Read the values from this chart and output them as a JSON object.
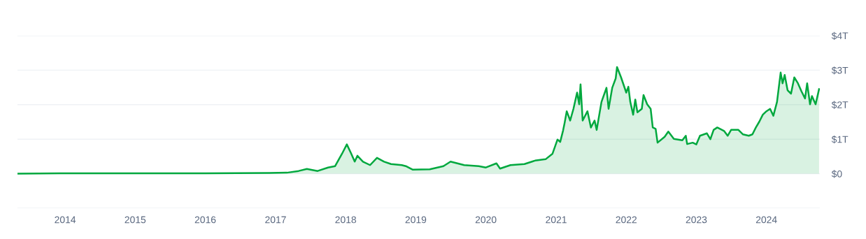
{
  "chart_data": {
    "type": "area",
    "x": [
      "2013-04-28",
      "2013-12-01",
      "2014-06-01",
      "2015-01-15",
      "2016-01-01",
      "2016-12-01",
      "2017-03-01",
      "2017-05-01",
      "2017-06-13",
      "2017-08-08",
      "2017-10-01",
      "2017-11-07",
      "2017-12-13",
      "2018-01-07",
      "2018-01-30",
      "2018-02-17",
      "2018-03-03",
      "2018-04-01",
      "2018-05-08",
      "2018-06-13",
      "2018-07-20",
      "2018-08-25",
      "2018-10-20",
      "2018-11-10",
      "2018-12-15",
      "2019-03-15",
      "2019-05-25",
      "2019-07-01",
      "2019-09-10",
      "2019-11-25",
      "2020-01-01",
      "2020-02-25",
      "2020-03-15",
      "2020-05-08",
      "2020-07-20",
      "2020-09-13",
      "2020-11-07",
      "2020-12-13",
      "2021-01-08",
      "2021-01-22",
      "2021-02-06",
      "2021-02-14",
      "2021-02-25",
      "2021-03-15",
      "2021-04-01",
      "2021-04-20",
      "2021-05-01",
      "2021-05-08",
      "2021-05-19",
      "2021-06-13",
      "2021-07-01",
      "2021-07-20",
      "2021-07-31",
      "2021-08-25",
      "2021-09-20",
      "2021-10-01",
      "2021-10-20",
      "2021-11-07",
      "2021-11-14",
      "2021-12-05",
      "2022-01-01",
      "2022-01-12",
      "2022-01-22",
      "2022-02-06",
      "2022-02-17",
      "2022-02-28",
      "2022-03-23",
      "2022-04-01",
      "2022-04-20",
      "2022-05-08",
      "2022-05-19",
      "2022-06-03",
      "2022-06-13",
      "2022-07-20",
      "2022-08-08",
      "2022-09-06",
      "2022-10-20",
      "2022-11-07",
      "2022-11-14",
      "2022-12-13",
      "2023-01-01",
      "2023-01-20",
      "2023-02-25",
      "2023-03-15",
      "2023-04-01",
      "2023-04-20",
      "2023-05-25",
      "2023-06-13",
      "2023-07-01",
      "2023-08-08",
      "2023-09-01",
      "2023-10-01",
      "2023-10-20",
      "2023-11-07",
      "2023-11-25",
      "2023-12-13",
      "2024-01-01",
      "2024-01-20",
      "2024-02-06",
      "2024-02-25",
      "2024-03-15",
      "2024-03-25",
      "2024-04-05",
      "2024-04-20",
      "2024-05-08",
      "2024-05-25",
      "2024-06-13",
      "2024-07-01",
      "2024-07-20",
      "2024-07-31",
      "2024-08-15",
      "2024-08-25",
      "2024-09-13",
      "2024-10-01"
    ],
    "series": [
      {
        "color": "#00a83e",
        "values": [
          0,
          0.01,
          0.01,
          0.01,
          0.01,
          0.02,
          0.03,
          0.08,
          0.14,
          0.08,
          0.18,
          0.22,
          0.58,
          0.85,
          0.58,
          0.35,
          0.52,
          0.35,
          0.25,
          0.46,
          0.35,
          0.28,
          0.25,
          0.22,
          0.12,
          0.13,
          0.22,
          0.35,
          0.25,
          0.22,
          0.18,
          0.3,
          0.15,
          0.25,
          0.28,
          0.38,
          0.42,
          0.58,
          0.99,
          0.92,
          1.25,
          1.47,
          1.81,
          1.54,
          1.88,
          2.35,
          2.01,
          2.59,
          1.54,
          1.81,
          1.34,
          1.54,
          1.27,
          2.08,
          2.49,
          1.88,
          2.49,
          2.76,
          3.09,
          2.79,
          2.35,
          2.52,
          2.08,
          1.71,
          2.15,
          1.78,
          1.88,
          2.28,
          2.01,
          1.88,
          1.34,
          1.3,
          0.9,
          1.07,
          1.22,
          1.01,
          0.97,
          1.1,
          0.86,
          0.9,
          0.85,
          1.1,
          1.17,
          1.0,
          1.27,
          1.34,
          1.24,
          1.1,
          1.27,
          1.27,
          1.14,
          1.1,
          1.14,
          1.34,
          1.51,
          1.71,
          1.81,
          1.88,
          1.68,
          2.08,
          2.93,
          2.62,
          2.86,
          2.42,
          2.32,
          2.79,
          2.62,
          2.39,
          2.18,
          2.62,
          2.01,
          2.25,
          2.01,
          2.45
        ]
      }
    ],
    "xlim": [
      "2013-04-28",
      "2024-10-05"
    ],
    "xticks": [
      "2014",
      "2015",
      "2016",
      "2017",
      "2018",
      "2019",
      "2020",
      "2021",
      "2022",
      "2023",
      "2024"
    ],
    "ylim": [
      -1,
      4
    ],
    "yticks": [
      {
        "value": -1,
        "label": null
      },
      {
        "value": 0,
        "label": "$0"
      },
      {
        "value": 1,
        "label": "$1T"
      },
      {
        "value": 2,
        "label": "$2T"
      },
      {
        "value": 3,
        "label": "$3T"
      },
      {
        "value": 4,
        "label": "$4T"
      }
    ],
    "grid": "y",
    "legend": false
  }
}
